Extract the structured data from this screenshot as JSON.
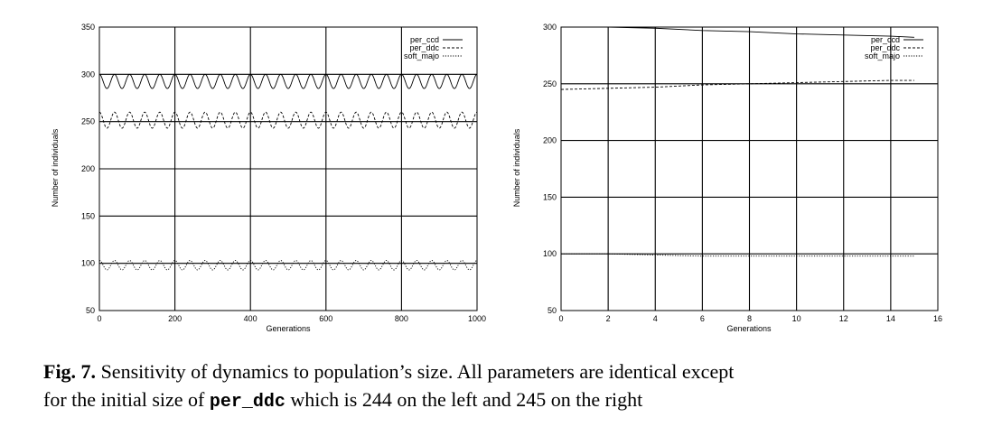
{
  "chart_data": [
    {
      "type": "line",
      "title": "",
      "xlabel": "Generations",
      "ylabel": "Number of individuals",
      "xlim": [
        0,
        1000
      ],
      "ylim": [
        50,
        350
      ],
      "xticks": [
        0,
        200,
        400,
        600,
        800,
        1000
      ],
      "yticks": [
        50,
        100,
        150,
        200,
        250,
        300,
        350
      ],
      "grid": true,
      "legend_position": "top-right",
      "series": [
        {
          "name": "per_ccd",
          "style": "solid",
          "pattern": "oscillation",
          "x_range": [
            0,
            1000
          ],
          "min": 285,
          "max": 300,
          "period": 40
        },
        {
          "name": "per_ddc",
          "style": "dashed",
          "pattern": "oscillation",
          "x_range": [
            0,
            1000
          ],
          "min": 243,
          "max": 260,
          "period": 40
        },
        {
          "name": "soft_majo",
          "style": "dotted",
          "pattern": "oscillation",
          "x_range": [
            0,
            1000
          ],
          "min": 93,
          "max": 103,
          "period": 40
        }
      ]
    },
    {
      "type": "line",
      "title": "",
      "xlabel": "Generations",
      "ylabel": "Number of individuals",
      "xlim": [
        0,
        16
      ],
      "ylim": [
        50,
        300
      ],
      "xticks": [
        0,
        2,
        4,
        6,
        8,
        10,
        12,
        14,
        16
      ],
      "yticks": [
        50,
        100,
        150,
        200,
        250,
        300
      ],
      "grid": true,
      "legend_position": "top-right",
      "series": [
        {
          "name": "per_ccd",
          "style": "solid",
          "x": [
            0,
            2,
            4,
            6,
            8,
            10,
            12,
            14,
            15
          ],
          "values": [
            300,
            300,
            299,
            297,
            296,
            294,
            293,
            292,
            291
          ]
        },
        {
          "name": "per_ddc",
          "style": "dashed",
          "x": [
            0,
            2,
            4,
            6,
            8,
            10,
            12,
            14,
            15
          ],
          "values": [
            245,
            246,
            247,
            249,
            250,
            251,
            252,
            253,
            253
          ]
        },
        {
          "name": "soft_majo",
          "style": "dotted",
          "x": [
            0,
            2,
            4,
            6,
            8,
            10,
            12,
            14,
            15
          ],
          "values": [
            100,
            100,
            99,
            98,
            98,
            98,
            98,
            98,
            98
          ]
        }
      ]
    }
  ],
  "caption": {
    "label": "Fig. 7.",
    "line1": "Sensitivity of dynamics to population’s size. All parameters are identical except",
    "line2_before": "for the initial size of",
    "code": "per_ddc",
    "line2_after": "which is 244 on the left and 245 on the right"
  }
}
